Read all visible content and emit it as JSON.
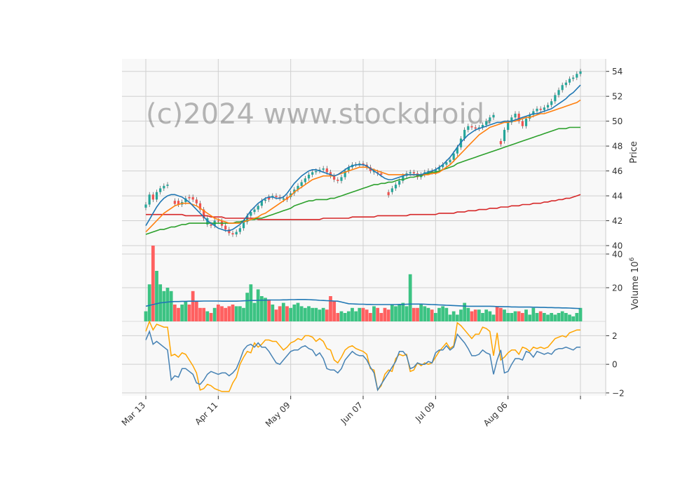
{
  "watermark": "(c)2024 www.stockdroid.",
  "chart_data": {
    "type": "candlestick",
    "x_tick_labels": [
      "Mar 13",
      "Apr 11",
      "May 09",
      "Jun 07",
      "Jul 09",
      "Aug 06"
    ],
    "n_days": 121,
    "price_panel": {
      "ylabel": "Price",
      "ylim": [
        40,
        55
      ],
      "yticks": [
        40,
        42,
        44,
        46,
        48,
        50,
        52,
        54
      ],
      "close": [
        43.3,
        44.1,
        43.7,
        44.3,
        44.6,
        44.8,
        44.9,
        null,
        43.6,
        43.3,
        43.5,
        43.8,
        43.9,
        43.7,
        43.4,
        42.9,
        42.2,
        41.7,
        41.6,
        42.0,
        42.0,
        41.6,
        41.3,
        41.0,
        40.9,
        41.1,
        41.4,
        41.9,
        42.4,
        42.7,
        42.9,
        43.2,
        43.6,
        43.7,
        43.9,
        44.0,
        43.9,
        43.8,
        43.7,
        43.9,
        44.2,
        44.5,
        44.8,
        45.1,
        45.4,
        45.7,
        45.9,
        46.0,
        46.1,
        46.2,
        45.9,
        45.6,
        45.3,
        45.2,
        45.5,
        46.0,
        46.3,
        46.5,
        46.5,
        46.6,
        46.5,
        46.3,
        46.0,
        45.9,
        45.8,
        45.7,
        null,
        44.3,
        44.6,
        44.9,
        45.2,
        45.6,
        45.8,
        45.9,
        45.8,
        45.5,
        45.7,
        45.9,
        46.0,
        45.9,
        46.1,
        46.3,
        46.5,
        46.7,
        46.9,
        47.4,
        47.9,
        48.6,
        49.3,
        49.6,
        49.5,
        49.4,
        49.5,
        49.7,
        50.0,
        50.3,
        50.5,
        null,
        48.4,
        49.3,
        49.9,
        50.3,
        50.6,
        50.0,
        49.6,
        50.2,
        50.5,
        50.8,
        51.0,
        50.9,
        51.1,
        51.3,
        51.6,
        52.1,
        52.5,
        52.9,
        53.1,
        53.4,
        53.5,
        53.8,
        54.0
      ],
      "ema_fast": [
        41.6,
        42.1,
        42.6,
        43.1,
        43.5,
        43.8,
        44.0,
        44.1,
        44.1,
        44.0,
        43.9,
        43.7,
        43.5,
        43.2,
        42.9,
        42.6,
        42.3,
        42.0,
        41.8,
        41.6,
        41.4,
        41.3,
        41.2,
        41.2,
        41.3,
        41.5,
        41.7,
        42.0,
        42.4,
        42.8,
        43.1,
        43.4,
        43.6,
        43.8,
        43.9,
        43.9,
        43.8,
        43.8,
        43.9,
        44.2,
        44.6,
        45.0,
        45.3,
        45.6,
        45.8,
        46.0,
        46.1,
        46.1,
        46.0,
        45.9,
        45.8,
        45.7,
        45.6,
        45.7,
        45.9,
        46.1,
        46.3,
        46.4,
        46.5,
        46.5,
        46.5,
        46.4,
        46.2,
        46.0,
        45.8,
        45.6,
        45.4,
        45.3,
        45.3,
        45.4,
        45.5,
        45.6,
        45.7,
        45.7,
        45.7,
        45.7,
        45.7,
        45.8,
        45.9,
        46.0,
        46.1,
        46.3,
        46.5,
        46.8,
        47.1,
        47.5,
        47.9,
        48.3,
        48.6,
        48.9,
        49.1,
        49.3,
        49.4,
        49.5,
        49.6,
        49.7,
        49.8,
        49.9,
        49.9,
        50.0,
        50.0,
        50.0,
        50.1,
        50.2,
        50.3,
        50.4,
        50.5,
        50.6,
        50.6,
        50.7,
        50.8,
        50.9,
        51.0,
        51.2,
        51.4,
        51.6,
        51.8,
        52.1,
        52.3,
        52.6,
        52.9
      ],
      "ema_mid": [
        41.1,
        41.4,
        41.7,
        42.0,
        42.3,
        42.6,
        42.8,
        43.0,
        43.2,
        43.3,
        43.4,
        43.4,
        43.4,
        43.3,
        43.2,
        43.0,
        42.8,
        42.6,
        42.4,
        42.2,
        42.1,
        42.0,
        41.9,
        41.8,
        41.8,
        41.8,
        41.8,
        41.9,
        42.0,
        42.1,
        42.2,
        42.3,
        42.5,
        42.6,
        42.8,
        43.0,
        43.2,
        43.4,
        43.6,
        43.8,
        44.0,
        44.3,
        44.5,
        44.7,
        44.9,
        45.1,
        45.3,
        45.4,
        45.5,
        45.6,
        45.6,
        45.6,
        45.6,
        45.7,
        45.8,
        45.9,
        46.0,
        46.1,
        46.2,
        46.3,
        46.3,
        46.3,
        46.2,
        46.1,
        46.0,
        45.9,
        45.8,
        45.7,
        45.7,
        45.7,
        45.7,
        45.7,
        45.7,
        45.7,
        45.7,
        45.7,
        45.7,
        45.7,
        45.7,
        45.8,
        45.8,
        45.9,
        46.1,
        46.3,
        46.5,
        46.8,
        47.1,
        47.4,
        47.7,
        48.0,
        48.3,
        48.6,
        48.9,
        49.1,
        49.3,
        49.5,
        49.6,
        49.7,
        49.8,
        49.9,
        49.9,
        50.0,
        50.0,
        50.1,
        50.2,
        50.3,
        50.3,
        50.4,
        50.5,
        50.6,
        50.6,
        50.7,
        50.8,
        50.9,
        51.0,
        51.1,
        51.2,
        51.3,
        51.4,
        51.5,
        51.7
      ],
      "sma_slow": [
        40.9,
        41.0,
        41.1,
        41.2,
        41.3,
        41.3,
        41.4,
        41.5,
        41.5,
        41.6,
        41.7,
        41.7,
        41.8,
        41.8,
        41.8,
        41.8,
        41.8,
        41.8,
        41.8,
        41.8,
        41.8,
        41.8,
        41.8,
        41.8,
        41.8,
        41.9,
        41.9,
        42.0,
        42.0,
        42.1,
        42.1,
        42.2,
        42.2,
        42.3,
        42.4,
        42.5,
        42.6,
        42.7,
        42.8,
        42.9,
        43.0,
        43.2,
        43.3,
        43.4,
        43.5,
        43.6,
        43.6,
        43.7,
        43.7,
        43.7,
        43.7,
        43.8,
        43.8,
        43.9,
        44.0,
        44.1,
        44.2,
        44.3,
        44.4,
        44.5,
        44.6,
        44.7,
        44.8,
        44.9,
        44.9,
        45.0,
        45.0,
        45.1,
        45.1,
        45.2,
        45.3,
        45.3,
        45.4,
        45.5,
        45.5,
        45.6,
        45.6,
        45.7,
        45.8,
        45.9,
        45.9,
        46.0,
        46.1,
        46.2,
        46.3,
        46.4,
        46.6,
        46.7,
        46.8,
        46.9,
        47.0,
        47.1,
        47.2,
        47.3,
        47.4,
        47.5,
        47.6,
        47.7,
        47.8,
        47.9,
        48.0,
        48.1,
        48.2,
        48.3,
        48.4,
        48.5,
        48.6,
        48.7,
        48.8,
        48.9,
        49.0,
        49.1,
        49.2,
        49.3,
        49.4,
        49.4,
        49.4,
        49.5,
        49.5,
        49.5,
        49.5
      ],
      "sma_long": [
        42.5,
        42.5,
        42.5,
        42.5,
        42.5,
        42.5,
        42.5,
        42.5,
        42.5,
        42.5,
        42.5,
        42.4,
        42.4,
        42.4,
        42.4,
        42.4,
        42.4,
        42.4,
        42.3,
        42.3,
        42.3,
        42.3,
        42.2,
        42.2,
        42.2,
        42.2,
        42.2,
        42.2,
        42.2,
        42.2,
        42.2,
        42.1,
        42.1,
        42.1,
        42.1,
        42.1,
        42.1,
        42.1,
        42.1,
        42.1,
        42.1,
        42.1,
        42.1,
        42.1,
        42.1,
        42.1,
        42.1,
        42.1,
        42.1,
        42.2,
        42.2,
        42.2,
        42.2,
        42.2,
        42.2,
        42.2,
        42.2,
        42.3,
        42.3,
        42.3,
        42.3,
        42.3,
        42.3,
        42.3,
        42.4,
        42.4,
        42.4,
        42.4,
        42.4,
        42.4,
        42.4,
        42.4,
        42.4,
        42.5,
        42.5,
        42.5,
        42.5,
        42.5,
        42.5,
        42.5,
        42.5,
        42.6,
        42.6,
        42.6,
        42.6,
        42.6,
        42.7,
        42.7,
        42.7,
        42.8,
        42.8,
        42.8,
        42.9,
        42.9,
        42.9,
        43.0,
        43.0,
        43.0,
        43.1,
        43.1,
        43.1,
        43.2,
        43.2,
        43.2,
        43.3,
        43.3,
        43.3,
        43.4,
        43.4,
        43.4,
        43.5,
        43.5,
        43.6,
        43.6,
        43.7,
        43.7,
        43.8,
        43.8,
        43.9,
        44.0,
        44.1
      ]
    },
    "volume_panel": {
      "ylabel": "Volume",
      "unit_exponent": "6",
      "ylim": [
        0,
        45
      ],
      "yticks": [
        20,
        40
      ],
      "volume": [
        6,
        22,
        45,
        30,
        22,
        18,
        20,
        18,
        10,
        8,
        10,
        12,
        10,
        18,
        12,
        8,
        8,
        6,
        5,
        8,
        10,
        9,
        8,
        9,
        10,
        9,
        9,
        8,
        17,
        22,
        11,
        19,
        15,
        14,
        13,
        10,
        7,
        9,
        11,
        9,
        8,
        10,
        11,
        9,
        8,
        9,
        8,
        8,
        7,
        8,
        7,
        15,
        12,
        5,
        6,
        5,
        6,
        8,
        6,
        8,
        8,
        7,
        5,
        9,
        8,
        5,
        8,
        7,
        10,
        9,
        10,
        11,
        9,
        28,
        8,
        8,
        10,
        9,
        8,
        7,
        5,
        8,
        9,
        8,
        4,
        6,
        4,
        7,
        11,
        8,
        6,
        7,
        7,
        5,
        7,
        6,
        4,
        9,
        8,
        7,
        5,
        5,
        6,
        6,
        5,
        7,
        4,
        8,
        5,
        6,
        5,
        4,
        5,
        4,
        5,
        6,
        5,
        4,
        3,
        5,
        8
      ],
      "up": [
        1,
        1,
        0,
        1,
        1,
        1,
        1,
        1,
        0,
        0,
        1,
        1,
        0,
        0,
        0,
        0,
        0,
        1,
        0,
        1,
        0,
        0,
        0,
        0,
        0,
        1,
        1,
        1,
        1,
        1,
        1,
        1,
        1,
        1,
        0,
        1,
        0,
        0,
        1,
        0,
        1,
        1,
        1,
        1,
        1,
        1,
        1,
        1,
        1,
        1,
        0,
        0,
        0,
        0,
        1,
        1,
        1,
        1,
        1,
        1,
        0,
        0,
        0,
        1,
        0,
        0,
        0,
        0,
        1,
        1,
        1,
        1,
        1,
        1,
        0,
        0,
        1,
        1,
        1,
        0,
        1,
        1,
        1,
        1,
        1,
        1,
        1,
        1,
        1,
        1,
        0,
        0,
        1,
        1,
        1,
        1,
        1,
        0,
        0,
        1,
        1,
        1,
        1,
        0,
        0,
        1,
        1,
        1,
        1,
        0,
        1,
        1,
        1,
        1,
        1,
        1,
        1,
        1,
        1,
        1,
        1
      ],
      "vol_ma": [
        9,
        9.5,
        10,
        10.5,
        11,
        11.2,
        11.5,
        11.7,
        11.8,
        11.8,
        11.9,
        11.9,
        12,
        12,
        12,
        12,
        12.1,
        12.1,
        12.1,
        12.1,
        12.1,
        12,
        12,
        12,
        12,
        12,
        12.1,
        12.2,
        12.3,
        12.4,
        12.4,
        12.5,
        12.6,
        12.6,
        12.7,
        12.7,
        12.7,
        12.7,
        12.8,
        12.8,
        12.9,
        12.9,
        13,
        13,
        13,
        12.9,
        12.8,
        12.7,
        12.5,
        12.4,
        12.3,
        12.2,
        12.1,
        12,
        11.5,
        11,
        10.5,
        10.4,
        10.3,
        10.2,
        10.2,
        10.1,
        10.1,
        10,
        10,
        10,
        10,
        10,
        10,
        10,
        10.1,
        10.1,
        10.2,
        10.3,
        10.3,
        10.3,
        10.3,
        10.2,
        10.1,
        10,
        9.9,
        9.8,
        9.7,
        9.6,
        9.5,
        9.4,
        9.3,
        9.2,
        9.1,
        9,
        9,
        9,
        9,
        9,
        9,
        9,
        8.9,
        8.8,
        8.8,
        8.7,
        8.7,
        8.6,
        8.6,
        8.5,
        8.5,
        8.5,
        8.5,
        8.4,
        8.4,
        8.3,
        8.3,
        8.2,
        8.2,
        8.1,
        8.1,
        8,
        8,
        7.9,
        7.8,
        7.7,
        7.6
      ]
    },
    "oscillator_panel": {
      "ylim": [
        -2.2,
        3.0
      ],
      "yticks": [
        -2,
        0,
        2
      ],
      "line_blue": [
        1.7,
        2.3,
        1.4,
        1.6,
        1.4,
        1.2,
        1.0,
        -1.1,
        -0.8,
        -0.9,
        -0.3,
        -0.3,
        -0.5,
        -0.7,
        -1.3,
        -1.4,
        -1.1,
        -0.7,
        -0.5,
        -0.6,
        -0.7,
        -0.6,
        -0.6,
        -0.8,
        -0.6,
        -0.3,
        0.3,
        1.0,
        1.3,
        1.4,
        1.2,
        1.5,
        1.2,
        1.2,
        0.9,
        0.5,
        0.1,
        0.0,
        0.3,
        0.6,
        0.9,
        1.0,
        1.0,
        1.2,
        1.3,
        1.1,
        1.0,
        0.6,
        0.8,
        0.4,
        -0.3,
        -0.4,
        -0.4,
        -0.6,
        -0.3,
        0.3,
        0.6,
        0.9,
        0.7,
        0.6,
        0.6,
        0.3,
        -0.2,
        -0.6,
        -1.8,
        -1.4,
        -1.0,
        -0.6,
        -0.2,
        0.2,
        0.9,
        0.9,
        0.6,
        -0.3,
        -0.2,
        0.1,
        0.0,
        0.0,
        0.2,
        0.1,
        0.8,
        1.0,
        1.0,
        1.3,
        1.0,
        1.2,
        2.1,
        1.8,
        1.5,
        1.1,
        0.6,
        0.6,
        0.7,
        1.0,
        0.8,
        0.7,
        -0.7,
        0.3,
        1.0,
        -0.6,
        -0.5,
        0.0,
        0.4,
        0.4,
        0.3,
        0.9,
        0.8,
        0.5,
        0.9,
        0.8,
        0.7,
        0.8,
        0.7,
        1.0,
        1.1,
        1.1,
        1.2,
        1.1,
        1.0,
        1.2,
        1.2
      ],
      "line_orange": [
        2.3,
        3.0,
        2.4,
        2.8,
        2.7,
        2.6,
        2.6,
        0.6,
        0.7,
        0.5,
        0.8,
        0.7,
        0.3,
        -0.1,
        -0.6,
        -1.8,
        -1.7,
        -1.4,
        -1.5,
        -1.7,
        -1.8,
        -1.9,
        -1.9,
        -1.9,
        -1.3,
        -0.9,
        0.0,
        0.5,
        0.9,
        0.8,
        1.5,
        1.2,
        1.4,
        1.7,
        1.7,
        1.6,
        1.6,
        1.3,
        1.0,
        1.2,
        1.5,
        1.6,
        1.8,
        1.7,
        2.0,
        2.0,
        1.9,
        1.6,
        1.8,
        1.6,
        1.1,
        1.0,
        0.3,
        0.1,
        0.5,
        1.0,
        1.2,
        1.3,
        1.1,
        1.0,
        0.9,
        0.7,
        -0.3,
        -0.4,
        -1.8,
        -1.5,
        -0.7,
        -0.4,
        -0.5,
        0.4,
        0.7,
        0.6,
        0.7,
        -0.5,
        -0.4,
        0.1,
        -0.1,
        0.1,
        0.0,
        0.1,
        0.5,
        0.9,
        1.2,
        1.5,
        1.1,
        1.3,
        2.9,
        2.7,
        2.4,
        2.1,
        1.8,
        2.1,
        2.1,
        2.6,
        2.5,
        2.3,
        0.6,
        2.2,
        0.3,
        0.5,
        0.8,
        1.0,
        1.0,
        0.7,
        1.2,
        1.1,
        0.9,
        1.2,
        1.1,
        1.2,
        1.1,
        1.2,
        1.5,
        1.8,
        1.9,
        2.0,
        1.9,
        2.2,
        2.3,
        2.4,
        2.4
      ]
    },
    "colors": {
      "up": "#26a69a",
      "down": "#ef5350",
      "ema_fast": "#1f77b4",
      "ema_mid": "#ff7f0e",
      "sma_slow": "#2ca02c",
      "sma_long": "#d62728",
      "vol_ma": "#1f77b4",
      "osc_blue": "#4682b4",
      "osc_orange": "#ffa500"
    },
    "grid": true,
    "yaxis_side": "right"
  }
}
